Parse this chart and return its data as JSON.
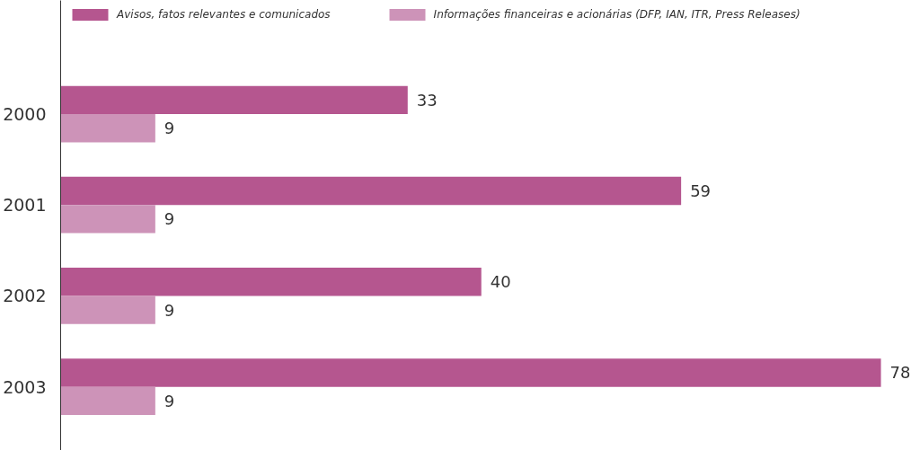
{
  "chart_data": {
    "type": "bar",
    "orientation": "horizontal",
    "categories": [
      "2000",
      "2001",
      "2002",
      "2003"
    ],
    "series": [
      {
        "name": "Avisos, fatos relevantes e comunicados",
        "color": "#b5568f",
        "values": [
          33,
          59,
          40,
          78
        ]
      },
      {
        "name": "Informações financeiras e acionárias (DFP, IAN, ITR, Press Releases)",
        "color": "#cd93b8",
        "values": [
          9,
          9,
          9,
          9
        ]
      }
    ],
    "data_labels": true,
    "legend": "top left",
    "tick_labels": "y"
  }
}
